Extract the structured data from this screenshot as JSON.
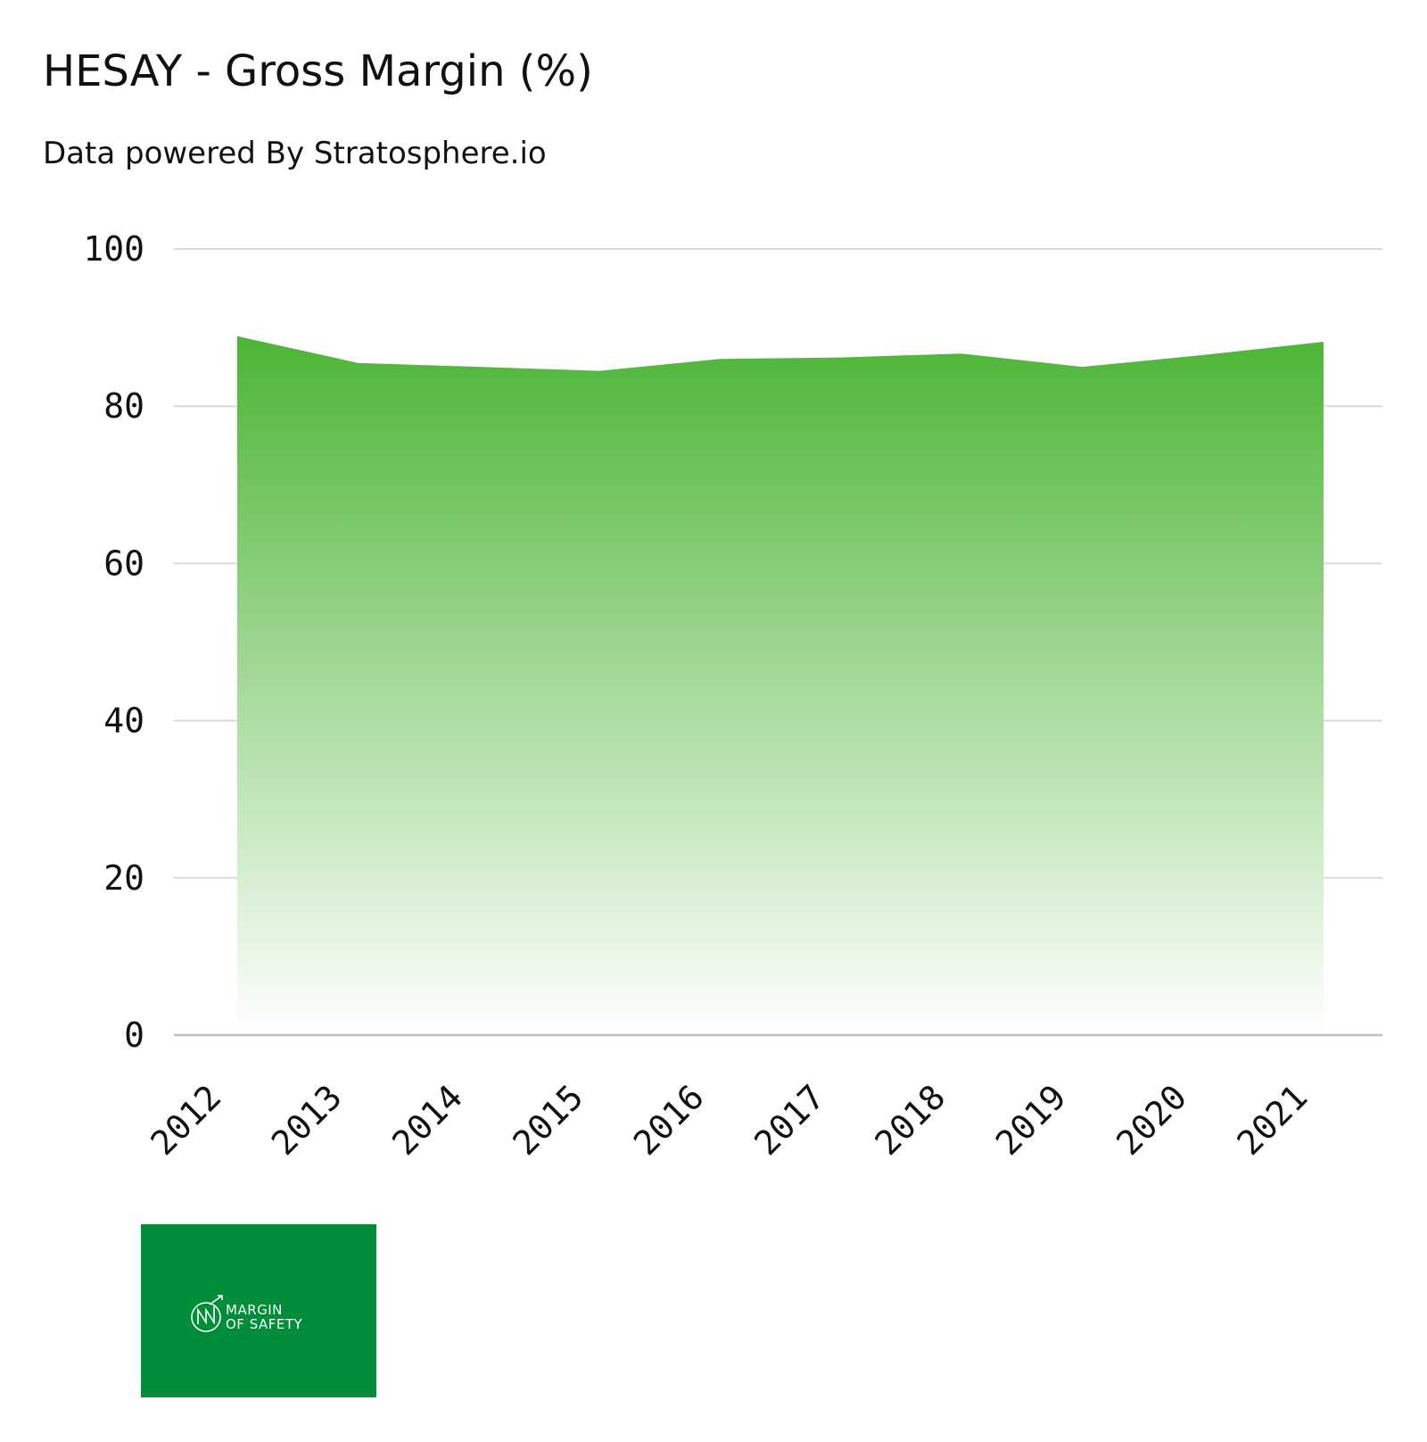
{
  "header": {
    "title": "HESAY - Gross Margin (%)",
    "subtitle": "Data powered By Stratosphere.io"
  },
  "logo": {
    "line1": "MARGIN",
    "line2": "OF SAFETY",
    "background": "#008d3a"
  },
  "colors": {
    "area_top": "#4cb535",
    "area_bottom": "#ffffff",
    "grid": "#d9d9d9",
    "baseline": "#bdbdbd"
  },
  "chart_data": {
    "type": "area",
    "title": "HESAY - Gross Margin (%)",
    "categories": [
      "2012",
      "2013",
      "2014",
      "2015",
      "2016",
      "2017",
      "2018",
      "2019",
      "2020",
      "2021"
    ],
    "series": [
      {
        "values": [
          88.9,
          85.5,
          85.0,
          84.5,
          86.0,
          86.2,
          86.7,
          85.0,
          86.5,
          88.2
        ]
      }
    ],
    "ylim": [
      0,
      100
    ],
    "yticks": [
      0,
      20,
      40,
      60,
      80,
      100
    ],
    "grid": true,
    "legend": "none"
  }
}
